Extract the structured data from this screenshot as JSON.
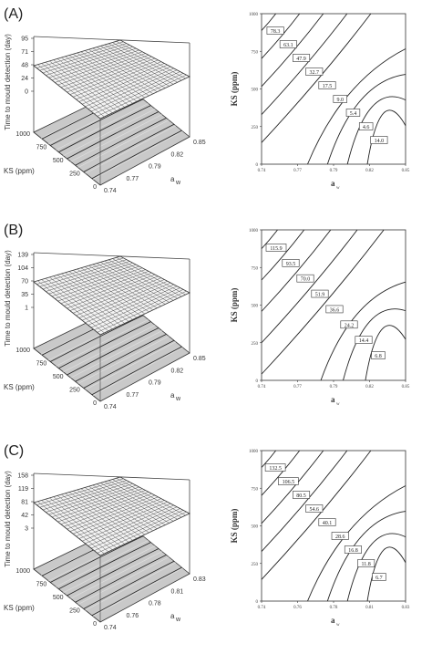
{
  "chart_data": [
    {
      "panel": "(A)",
      "type": "surface",
      "zlabel": "Time to mould detection (day)",
      "ylabel": "KS (ppm)",
      "xlabel": "aw",
      "z_ticks": [
        "95",
        "71",
        "48",
        "24",
        "0"
      ],
      "y_ticks": [
        "1000",
        "750",
        "500",
        "250",
        "0"
      ],
      "x_ticks": [
        "0.74",
        "0.77",
        "0.79",
        "0.82",
        "0.85"
      ]
    },
    {
      "panel": "(A)",
      "type": "contour",
      "xlabel": "aw",
      "ylabel": "KS (ppm)",
      "xlim": [
        0.74,
        0.85
      ],
      "ylim": [
        0,
        1000
      ],
      "x_ticks": [
        "0.74",
        "0.77",
        "0.79",
        "0.82",
        "0.85"
      ],
      "y_ticks": [
        "1000",
        "750",
        "500",
        "250",
        "0"
      ],
      "levels": [
        "78.3",
        "63.1",
        "47.9",
        "32.7",
        "17.5",
        "9.0",
        "5.4",
        "4.6",
        "14.0"
      ]
    },
    {
      "panel": "(B)",
      "type": "surface",
      "zlabel": "Time to mould detection (day)",
      "ylabel": "KS (ppm)",
      "xlabel": "aw",
      "z_ticks": [
        "139",
        "104",
        "70",
        "35",
        "1"
      ],
      "y_ticks": [
        "1000",
        "750",
        "500",
        "250",
        "0"
      ],
      "x_ticks": [
        "0.74",
        "0.77",
        "0.79",
        "0.82",
        "0.85"
      ]
    },
    {
      "panel": "(B)",
      "type": "contour",
      "xlabel": "aw",
      "ylabel": "KS (ppm)",
      "xlim": [
        0.74,
        0.85
      ],
      "ylim": [
        0,
        1000
      ],
      "x_ticks": [
        "0.74",
        "0.77",
        "0.79",
        "0.82",
        "0.85"
      ],
      "y_ticks": [
        "1000",
        "750",
        "500",
        "250",
        "0"
      ],
      "levels": [
        "115.9",
        "93.5",
        "70.0",
        "51.9",
        "36.6",
        "24.2",
        "14.4",
        "6.8"
      ]
    },
    {
      "panel": "(C)",
      "type": "surface",
      "zlabel": "Time to mould detection (day)",
      "ylabel": "KS (ppm)",
      "xlabel": "aw",
      "z_ticks": [
        "158",
        "119",
        "81",
        "42",
        "3"
      ],
      "y_ticks": [
        "1000",
        "750",
        "500",
        "250",
        "0"
      ],
      "x_ticks": [
        "0.74",
        "0.76",
        "0.78",
        "0.81",
        "0.83"
      ]
    },
    {
      "panel": "(C)",
      "type": "contour",
      "xlabel": "aw",
      "ylabel": "KS (ppm)",
      "xlim": [
        0.74,
        0.83
      ],
      "ylim": [
        0,
        1000
      ],
      "x_ticks": [
        "0.74",
        "0.76",
        "0.78",
        "0.81",
        "0.83"
      ],
      "y_ticks": [
        "1000",
        "750",
        "500",
        "250",
        "0"
      ],
      "levels": [
        "132.5",
        "106.5",
        "80.5",
        "54.6",
        "40.1",
        "28.6",
        "16.8",
        "11.8",
        "6.7"
      ]
    }
  ]
}
